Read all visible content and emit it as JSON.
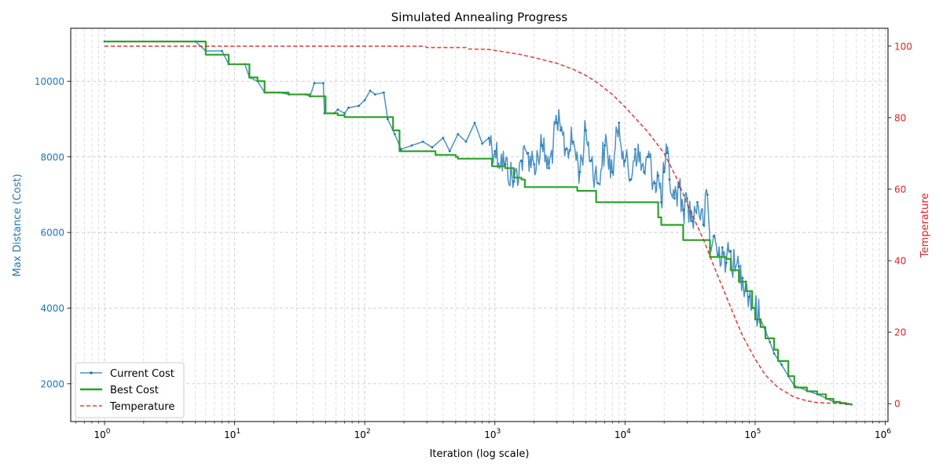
{
  "chart_data": {
    "type": "line",
    "title": "Simulated Annealing Progress",
    "xlabel": "Iteration (log scale)",
    "ylabel_left": "Max Distance (Cost)",
    "ylabel_right": "Temperature",
    "x_scale": "log",
    "xlim": [
      0.55,
      1050000
    ],
    "ylim_left": [
      1000,
      11400
    ],
    "ylim_right": [
      -5,
      105
    ],
    "x_ticks": [
      {
        "value": 1,
        "base": "10",
        "exp": "0"
      },
      {
        "value": 10,
        "base": "10",
        "exp": "1"
      },
      {
        "value": 100,
        "base": "10",
        "exp": "2"
      },
      {
        "value": 1000,
        "base": "10",
        "exp": "3"
      },
      {
        "value": 10000,
        "base": "10",
        "exp": "4"
      },
      {
        "value": 100000,
        "base": "10",
        "exp": "5"
      },
      {
        "value": 1000000,
        "base": "10",
        "exp": "6"
      }
    ],
    "y_ticks_left": [
      "2000",
      "4000",
      "6000",
      "8000",
      "10000"
    ],
    "y_ticks_right": [
      "0",
      "20",
      "40",
      "60",
      "80",
      "100"
    ],
    "grid": true,
    "legend_position": "lower-left",
    "colors": {
      "current": "#1f77b4",
      "best": "#2ca02c",
      "temperature": "#d62728"
    },
    "series": [
      {
        "name": "Current Cost",
        "axis": "left",
        "points": [
          [
            1,
            11050
          ],
          [
            5,
            11050
          ],
          [
            6,
            10800
          ],
          [
            8,
            10800
          ],
          [
            9,
            10450
          ],
          [
            12,
            10450
          ],
          [
            13,
            10100
          ],
          [
            15,
            10000
          ],
          [
            17,
            9700
          ],
          [
            22,
            9700
          ],
          [
            26,
            9650
          ],
          [
            35,
            9650
          ],
          [
            38,
            9600
          ],
          [
            41,
            9950
          ],
          [
            48,
            9950
          ],
          [
            49,
            9150
          ],
          [
            58,
            9150
          ],
          [
            62,
            9250
          ],
          [
            70,
            9150
          ],
          [
            75,
            9300
          ],
          [
            90,
            9350
          ],
          [
            100,
            9500
          ],
          [
            110,
            9750
          ],
          [
            120,
            9650
          ],
          [
            140,
            9700
          ],
          [
            150,
            9000
          ],
          [
            170,
            8600
          ],
          [
            190,
            8200
          ],
          [
            230,
            8300
          ],
          [
            280,
            8400
          ],
          [
            330,
            8250
          ],
          [
            400,
            8500
          ],
          [
            450,
            8150
          ],
          [
            520,
            8600
          ],
          [
            600,
            8400
          ],
          [
            700,
            8900
          ],
          [
            800,
            8350
          ],
          [
            900,
            8500
          ],
          [
            1000,
            8150
          ],
          [
            1200,
            7800
          ],
          [
            1400,
            7350
          ],
          [
            1600,
            7900
          ],
          [
            1800,
            8100
          ],
          [
            2000,
            7800
          ],
          [
            2300,
            8300
          ],
          [
            2600,
            7700
          ],
          [
            3000,
            8900
          ],
          [
            3200,
            8700
          ],
          [
            3500,
            8200
          ],
          [
            4000,
            8400
          ],
          [
            4500,
            7600
          ],
          [
            5000,
            8700
          ],
          [
            5500,
            7900
          ],
          [
            6200,
            7300
          ],
          [
            7000,
            8300
          ],
          [
            8000,
            7600
          ],
          [
            9000,
            8900
          ],
          [
            10000,
            7900
          ],
          [
            11000,
            7400
          ],
          [
            12000,
            8200
          ],
          [
            14000,
            7600
          ],
          [
            15000,
            8000
          ],
          [
            17000,
            7300
          ],
          [
            18000,
            7500
          ],
          [
            19000,
            6800
          ],
          [
            20000,
            7600
          ],
          [
            21000,
            8100
          ],
          [
            22000,
            7400
          ],
          [
            24000,
            6900
          ],
          [
            26000,
            7200
          ],
          [
            28000,
            6600
          ],
          [
            30000,
            6900
          ],
          [
            33000,
            6300
          ],
          [
            36000,
            6800
          ],
          [
            40000,
            6200
          ],
          [
            43000,
            7000
          ],
          [
            45000,
            5600
          ],
          [
            48000,
            5900
          ],
          [
            52000,
            5400
          ],
          [
            56000,
            5600
          ],
          [
            60000,
            5200
          ],
          [
            65000,
            5500
          ],
          [
            70000,
            5000
          ],
          [
            75000,
            5100
          ],
          [
            80000,
            4800
          ],
          [
            85000,
            4700
          ],
          [
            90000,
            4300
          ],
          [
            100000,
            4000
          ],
          [
            110000,
            3700
          ],
          [
            120000,
            3400
          ],
          [
            130000,
            3100
          ],
          [
            140000,
            2800
          ],
          [
            160000,
            2500
          ],
          [
            180000,
            2200
          ],
          [
            200000,
            1950
          ],
          [
            250000,
            1820
          ],
          [
            300000,
            1720
          ],
          [
            350000,
            1620
          ],
          [
            400000,
            1520
          ],
          [
            450000,
            1490
          ],
          [
            500000,
            1460
          ],
          [
            550000,
            1450
          ]
        ]
      },
      {
        "name": "Best Cost",
        "axis": "left",
        "points": [
          [
            1,
            11050
          ],
          [
            5,
            11050
          ],
          [
            6,
            10700
          ],
          [
            8,
            10700
          ],
          [
            9,
            10450
          ],
          [
            12,
            10450
          ],
          [
            13,
            10100
          ],
          [
            15,
            10000
          ],
          [
            17,
            9700
          ],
          [
            22,
            9700
          ],
          [
            26,
            9650
          ],
          [
            35,
            9650
          ],
          [
            38,
            9600
          ],
          [
            48,
            9600
          ],
          [
            50,
            9150
          ],
          [
            58,
            9150
          ],
          [
            62,
            9100
          ],
          [
            70,
            9050
          ],
          [
            150,
            9050
          ],
          [
            165,
            8700
          ],
          [
            185,
            8150
          ],
          [
            330,
            8150
          ],
          [
            350,
            8050
          ],
          [
            500,
            8000
          ],
          [
            520,
            7950
          ],
          [
            900,
            7950
          ],
          [
            950,
            7750
          ],
          [
            1200,
            7700
          ],
          [
            1400,
            7450
          ],
          [
            1600,
            7400
          ],
          [
            1700,
            7200
          ],
          [
            4000,
            7200
          ],
          [
            4300,
            7100
          ],
          [
            5800,
            7100
          ],
          [
            6000,
            6800
          ],
          [
            17000,
            6800
          ],
          [
            18000,
            6400
          ],
          [
            19000,
            6200
          ],
          [
            26000,
            6200
          ],
          [
            28000,
            5800
          ],
          [
            43000,
            5800
          ],
          [
            45000,
            5350
          ],
          [
            60000,
            5300
          ],
          [
            65000,
            5000
          ],
          [
            75000,
            4700
          ],
          [
            85000,
            4450
          ],
          [
            95000,
            4000
          ],
          [
            100000,
            3700
          ],
          [
            110000,
            3500
          ],
          [
            120000,
            3200
          ],
          [
            140000,
            2900
          ],
          [
            150000,
            2600
          ],
          [
            180000,
            2200
          ],
          [
            200000,
            1900
          ],
          [
            250000,
            1800
          ],
          [
            300000,
            1720
          ],
          [
            350000,
            1600
          ],
          [
            400000,
            1520
          ],
          [
            450000,
            1490
          ],
          [
            500000,
            1460
          ],
          [
            550000,
            1450
          ]
        ]
      },
      {
        "name": "Temperature",
        "axis": "right",
        "points": [
          [
            1,
            100
          ],
          [
            290,
            100
          ],
          [
            300,
            99.6
          ],
          [
            600,
            99.6
          ],
          [
            620,
            99.2
          ],
          [
            900,
            99.1
          ],
          [
            1000,
            98.8
          ],
          [
            1500,
            97.8
          ],
          [
            2000,
            96.8
          ],
          [
            3000,
            95.2
          ],
          [
            4000,
            93.5
          ],
          [
            5000,
            91.8
          ],
          [
            6000,
            90
          ],
          [
            8000,
            86.5
          ],
          [
            10000,
            83
          ],
          [
            15000,
            76
          ],
          [
            20000,
            70
          ],
          [
            25000,
            63
          ],
          [
            30000,
            56
          ],
          [
            40000,
            46
          ],
          [
            50000,
            37
          ],
          [
            60000,
            30
          ],
          [
            70000,
            24
          ],
          [
            80000,
            19
          ],
          [
            100000,
            12.5
          ],
          [
            120000,
            8
          ],
          [
            150000,
            4.5
          ],
          [
            200000,
            1.8
          ],
          [
            250000,
            0.8
          ],
          [
            300000,
            0.3
          ],
          [
            400000,
            0.1
          ],
          [
            550000,
            0
          ]
        ]
      }
    ]
  }
}
